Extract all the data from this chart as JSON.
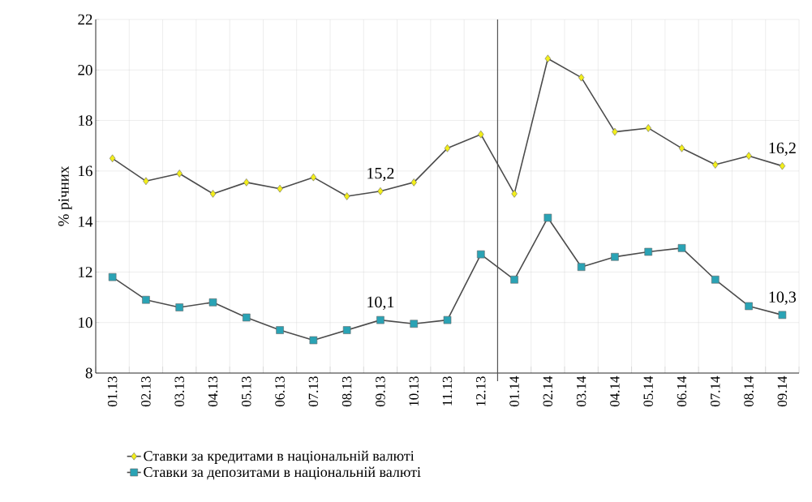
{
  "chart_data": {
    "type": "line",
    "ylabel": "% річних",
    "categories": [
      "01.13",
      "02.13",
      "03.13",
      "04.13",
      "05.13",
      "06.13",
      "07.13",
      "08.13",
      "09.13",
      "10.13",
      "11.13",
      "12.13",
      "01.14",
      "02.14",
      "03.14",
      "04.14",
      "05.14",
      "06.14",
      "07.14",
      "08.14",
      "09.14"
    ],
    "series": [
      {
        "name": "Ставки за кредитами в національній валюті",
        "color": "#f2ee1a",
        "marker": "diamond",
        "values": [
          16.5,
          15.6,
          15.9,
          15.1,
          15.55,
          15.3,
          15.75,
          15.0,
          15.2,
          15.55,
          16.9,
          17.45,
          15.1,
          20.45,
          19.7,
          17.55,
          17.7,
          16.9,
          16.25,
          16.6,
          16.2
        ]
      },
      {
        "name": "Ставки за депозитами в національній валюті",
        "color": "#2aa3b5",
        "marker": "square",
        "values": [
          11.8,
          10.9,
          10.6,
          10.8,
          10.2,
          9.7,
          9.3,
          9.7,
          10.1,
          9.95,
          10.1,
          12.7,
          11.7,
          14.15,
          12.2,
          12.6,
          12.8,
          12.95,
          11.7,
          10.65,
          10.3
        ]
      }
    ],
    "ylim": [
      8,
      22
    ],
    "yticks": [
      8,
      10,
      12,
      14,
      16,
      18,
      20,
      22
    ],
    "ref_lines": [
      {
        "axis": "x",
        "value": "01.14",
        "color": "#555555"
      }
    ],
    "grid": true,
    "legend": "bottom",
    "line_style": "solid",
    "annotations": [
      {
        "text": "15,2",
        "x": "09.13",
        "y": 15.2
      },
      {
        "text": "10,1",
        "x": "09.13",
        "y": 10.1
      },
      {
        "text": "16,2",
        "x": "09.14",
        "y": 16.2
      },
      {
        "text": "10,3",
        "x": "09.14",
        "y": 10.3
      }
    ]
  }
}
